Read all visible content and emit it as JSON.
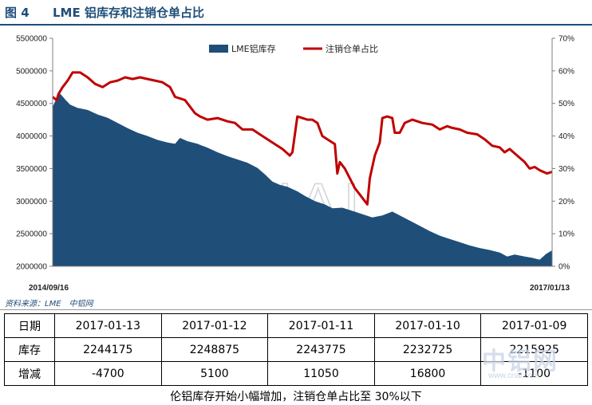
{
  "header": {
    "fig_no": "图 4",
    "title": "LME 铝库存和注销仓单占比"
  },
  "chart_data": {
    "type": "area+line",
    "x_start_label": "2014/09/16",
    "x_end_label": "2017/01/13",
    "y_left_ticks": [
      "2000000",
      "2500000",
      "3000000",
      "3500000",
      "4000000",
      "4500000",
      "5000000",
      "5500000"
    ],
    "y_right_ticks": [
      "0%",
      "10%",
      "20%",
      "30%",
      "40%",
      "50%",
      "60%",
      "70%"
    ],
    "ylim_left": [
      2000000,
      5500000
    ],
    "ylim_right": [
      0,
      70
    ],
    "legend_position": "top-center",
    "series": [
      {
        "name": "LME铝库存",
        "kind": "area",
        "color": "#1f4e79",
        "points": [
          [
            0.0,
            4450000
          ],
          [
            0.008,
            4580000
          ],
          [
            0.015,
            4650000
          ],
          [
            0.025,
            4560000
          ],
          [
            0.035,
            4480000
          ],
          [
            0.05,
            4430000
          ],
          [
            0.07,
            4400000
          ],
          [
            0.09,
            4330000
          ],
          [
            0.11,
            4280000
          ],
          [
            0.13,
            4200000
          ],
          [
            0.15,
            4120000
          ],
          [
            0.17,
            4050000
          ],
          [
            0.19,
            4000000
          ],
          [
            0.21,
            3940000
          ],
          [
            0.23,
            3900000
          ],
          [
            0.245,
            3880000
          ],
          [
            0.255,
            3970000
          ],
          [
            0.27,
            3920000
          ],
          [
            0.29,
            3880000
          ],
          [
            0.31,
            3820000
          ],
          [
            0.33,
            3750000
          ],
          [
            0.35,
            3690000
          ],
          [
            0.37,
            3640000
          ],
          [
            0.39,
            3590000
          ],
          [
            0.41,
            3510000
          ],
          [
            0.425,
            3410000
          ],
          [
            0.44,
            3300000
          ],
          [
            0.455,
            3250000
          ],
          [
            0.47,
            3220000
          ],
          [
            0.49,
            3150000
          ],
          [
            0.505,
            3080000
          ],
          [
            0.525,
            3000000
          ],
          [
            0.545,
            2950000
          ],
          [
            0.56,
            2890000
          ],
          [
            0.58,
            2900000
          ],
          [
            0.6,
            2850000
          ],
          [
            0.62,
            2800000
          ],
          [
            0.64,
            2750000
          ],
          [
            0.66,
            2780000
          ],
          [
            0.68,
            2840000
          ],
          [
            0.695,
            2780000
          ],
          [
            0.715,
            2700000
          ],
          [
            0.735,
            2620000
          ],
          [
            0.755,
            2540000
          ],
          [
            0.775,
            2470000
          ],
          [
            0.795,
            2420000
          ],
          [
            0.815,
            2370000
          ],
          [
            0.835,
            2320000
          ],
          [
            0.855,
            2280000
          ],
          [
            0.875,
            2250000
          ],
          [
            0.895,
            2210000
          ],
          [
            0.91,
            2150000
          ],
          [
            0.925,
            2180000
          ],
          [
            0.945,
            2150000
          ],
          [
            0.96,
            2130000
          ],
          [
            0.975,
            2100000
          ],
          [
            0.988,
            2190000
          ],
          [
            1.0,
            2244175
          ]
        ]
      },
      {
        "name": "注销仓单占比",
        "kind": "line",
        "color": "#c00000",
        "axis": "right",
        "points": [
          [
            0.0,
            52
          ],
          [
            0.008,
            51
          ],
          [
            0.012,
            53
          ],
          [
            0.02,
            55
          ],
          [
            0.03,
            57
          ],
          [
            0.04,
            59.5
          ],
          [
            0.055,
            59.5
          ],
          [
            0.07,
            58
          ],
          [
            0.085,
            56
          ],
          [
            0.1,
            55
          ],
          [
            0.115,
            56.5
          ],
          [
            0.13,
            57
          ],
          [
            0.145,
            58
          ],
          [
            0.16,
            57.5
          ],
          [
            0.175,
            58
          ],
          [
            0.19,
            57.5
          ],
          [
            0.205,
            57
          ],
          [
            0.22,
            56.5
          ],
          [
            0.235,
            55
          ],
          [
            0.245,
            52
          ],
          [
            0.265,
            51
          ],
          [
            0.275,
            49
          ],
          [
            0.285,
            47
          ],
          [
            0.295,
            46
          ],
          [
            0.31,
            45
          ],
          [
            0.33,
            45.5
          ],
          [
            0.35,
            44.5
          ],
          [
            0.365,
            44
          ],
          [
            0.38,
            42
          ],
          [
            0.4,
            42
          ],
          [
            0.42,
            40
          ],
          [
            0.44,
            38
          ],
          [
            0.46,
            36
          ],
          [
            0.475,
            34
          ],
          [
            0.48,
            35
          ],
          [
            0.49,
            46
          ],
          [
            0.5,
            45.5
          ],
          [
            0.51,
            45
          ],
          [
            0.52,
            45
          ],
          [
            0.53,
            44
          ],
          [
            0.54,
            40
          ],
          [
            0.55,
            39
          ],
          [
            0.565,
            37.5
          ],
          [
            0.57,
            28.5
          ],
          [
            0.575,
            32
          ],
          [
            0.585,
            30
          ],
          [
            0.595,
            27
          ],
          [
            0.605,
            24
          ],
          [
            0.615,
            22
          ],
          [
            0.625,
            20
          ],
          [
            0.63,
            19
          ],
          [
            0.635,
            27
          ],
          [
            0.645,
            34
          ],
          [
            0.655,
            38
          ],
          [
            0.66,
            45.5
          ],
          [
            0.67,
            46
          ],
          [
            0.68,
            45.5
          ],
          [
            0.685,
            41
          ],
          [
            0.695,
            41
          ],
          [
            0.705,
            44
          ],
          [
            0.72,
            45
          ],
          [
            0.74,
            44
          ],
          [
            0.76,
            43.5
          ],
          [
            0.775,
            42
          ],
          [
            0.79,
            43
          ],
          [
            0.8,
            42.5
          ],
          [
            0.815,
            42
          ],
          [
            0.83,
            41
          ],
          [
            0.85,
            40.5
          ],
          [
            0.865,
            39
          ],
          [
            0.88,
            37
          ],
          [
            0.895,
            36.5
          ],
          [
            0.905,
            35
          ],
          [
            0.915,
            36
          ],
          [
            0.93,
            34
          ],
          [
            0.945,
            32
          ],
          [
            0.955,
            30
          ],
          [
            0.965,
            30.5
          ],
          [
            0.975,
            29.5
          ],
          [
            0.99,
            28.5
          ],
          [
            1.0,
            29
          ]
        ]
      }
    ]
  },
  "watermark_text": "CNAL",
  "source": {
    "text": "资料来源：LME　中铝网"
  },
  "table": {
    "rows": [
      {
        "head": "日期",
        "cells": [
          "2017-01-13",
          "2017-01-12",
          "2017-01-11",
          "2017-01-10",
          "2017-01-09"
        ]
      },
      {
        "head": "库存",
        "cells": [
          "2244175",
          "2248875",
          "2243775",
          "2232725",
          "2215925"
        ]
      },
      {
        "head": "增减",
        "cells": [
          "-4700",
          "5100",
          "11050",
          "16800",
          "-1100"
        ]
      }
    ]
  },
  "logo": {
    "text": "中铝网",
    "url": "www.cnal.com"
  },
  "footer": {
    "text": "伦铝库存开始小幅增加，注销仓单占比至 30%以下"
  }
}
